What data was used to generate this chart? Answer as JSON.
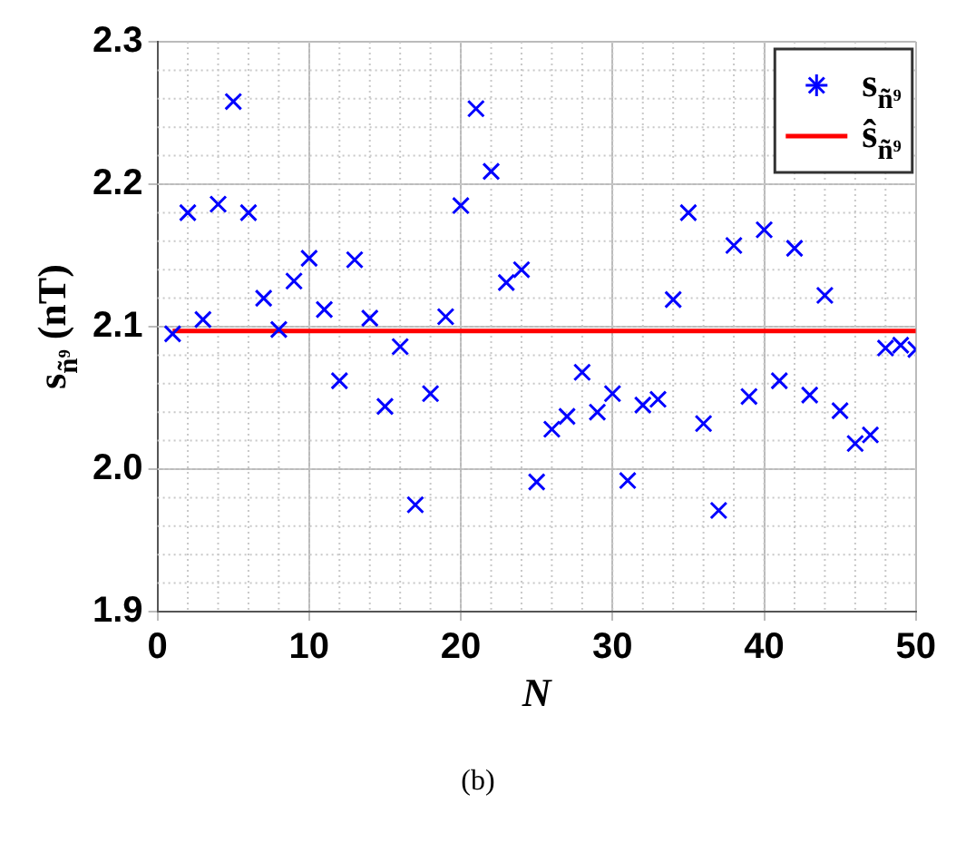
{
  "chart_data": {
    "type": "scatter",
    "xlabel": "N",
    "ylabel": "s$_{ñ⁹}$ (nT)",
    "x": [
      1,
      2,
      3,
      4,
      5,
      6,
      7,
      8,
      9,
      10,
      11,
      12,
      13,
      14,
      15,
      16,
      17,
      18,
      19,
      20,
      21,
      22,
      23,
      24,
      25,
      26,
      27,
      28,
      29,
      30,
      31,
      32,
      33,
      34,
      35,
      36,
      37,
      38,
      39,
      40,
      41,
      42,
      43,
      44,
      45,
      46,
      47,
      48,
      49,
      50
    ],
    "series": [
      {
        "name": "s$_{ñ⁹}$",
        "type": "scatter",
        "color": "#0000ff",
        "marker": "cross",
        "values": [
          2.095,
          2.18,
          2.105,
          2.186,
          2.258,
          2.18,
          2.12,
          2.098,
          2.132,
          2.148,
          2.112,
          2.062,
          2.147,
          2.106,
          2.044,
          2.086,
          1.975,
          2.053,
          2.107,
          2.185,
          2.253,
          2.209,
          2.131,
          2.14,
          1.991,
          2.028,
          2.037,
          2.068,
          2.04,
          2.053,
          1.992,
          2.045,
          2.049,
          2.119,
          2.18,
          2.032,
          1.971,
          2.157,
          2.051,
          2.168,
          2.062,
          2.155,
          2.052,
          2.122,
          2.041,
          2.018,
          2.024,
          2.085,
          2.087,
          2.084
        ]
      },
      {
        "name": "ŝ$_{ñ⁹}$",
        "type": "line",
        "color": "#ff0000",
        "x": [
          1,
          50
        ],
        "values": [
          2.097,
          2.097
        ]
      }
    ],
    "xlim": [
      0,
      50
    ],
    "xticks": [
      0,
      10,
      20,
      30,
      40,
      50
    ],
    "ylim": [
      1.9,
      2.3
    ],
    "yticks": [
      1.9,
      {
        "value": 2,
        "label": "2.0"
      },
      2.1,
      2.2,
      2.3
    ],
    "grid": true,
    "legend": "top right",
    "annotations": [
      "(b)"
    ]
  }
}
